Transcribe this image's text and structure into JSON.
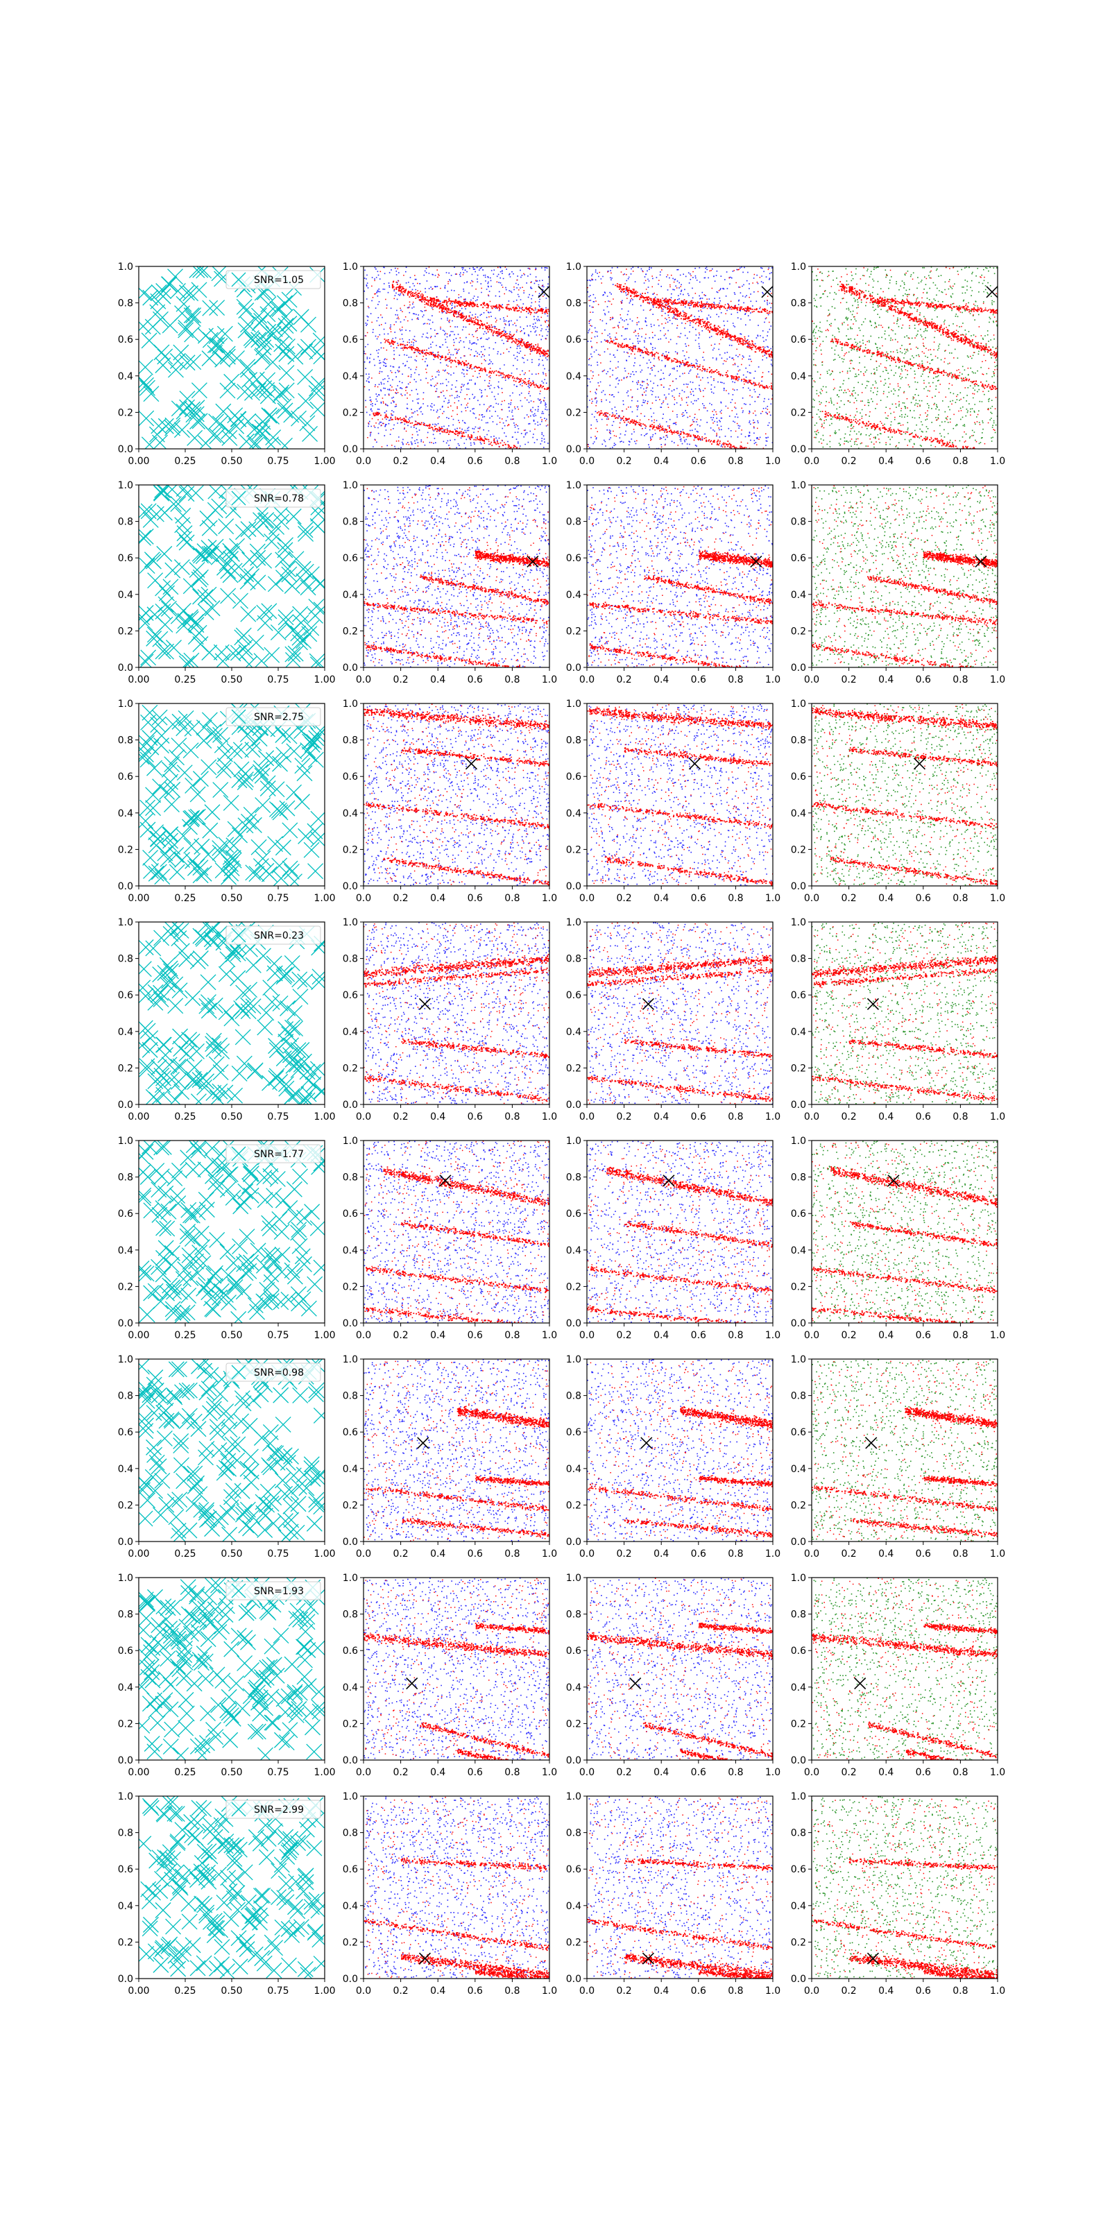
{
  "chart_data": {
    "type": "scatter",
    "layout": {
      "rows": 8,
      "columns": 4
    },
    "x_ticks": [
      "0.00",
      "0.25",
      "0.50",
      "0.75",
      "1.00"
    ],
    "x_ticks_short": [
      "0.0",
      "0.2",
      "0.4",
      "0.6",
      "0.8",
      "1.0"
    ],
    "y_ticks": [
      "0.0",
      "0.2",
      "0.4",
      "0.6",
      "0.8",
      "1.0"
    ],
    "xlim": [
      0,
      1
    ],
    "ylim": [
      0,
      1
    ],
    "colors": {
      "noise_marker": "#00bfbf",
      "signal": "#ff0000",
      "background": "#0000ff",
      "remainder": "#008000",
      "source_marker": "#000000"
    },
    "columns_style": [
      "cyan-x-markers",
      "red-blue-points",
      "red-blue-points",
      "red-green-points"
    ],
    "rows": [
      {
        "legend": "SNR=1.05",
        "source": [
          0.97,
          0.86
        ],
        "bands": [
          [
            0.15,
            0.9,
            -0.45
          ],
          [
            0.35,
            0.82,
            -0.1
          ],
          [
            0.1,
            0.6,
            -0.3
          ],
          [
            0.05,
            0.2,
            -0.25
          ]
        ]
      },
      {
        "legend": "SNR=0.78",
        "source": [
          0.91,
          0.58
        ],
        "bands": [
          [
            0.6,
            0.62,
            -0.12
          ],
          [
            0.0,
            0.35,
            -0.1
          ],
          [
            0.0,
            0.12,
            -0.15
          ],
          [
            0.3,
            0.5,
            -0.2
          ]
        ]
      },
      {
        "legend": "SNR=2.75",
        "source": [
          0.58,
          0.67
        ],
        "bands": [
          [
            0.0,
            0.96,
            -0.08
          ],
          [
            0.2,
            0.75,
            -0.1
          ],
          [
            0.0,
            0.45,
            -0.12
          ],
          [
            0.1,
            0.15,
            -0.15
          ]
        ]
      },
      {
        "legend": "SNR=0.23",
        "source": [
          0.33,
          0.55
        ],
        "bands": [
          [
            0.0,
            0.72,
            0.08
          ],
          [
            0.0,
            0.66,
            0.08
          ],
          [
            0.2,
            0.35,
            -0.1
          ],
          [
            0.0,
            0.15,
            -0.12
          ]
        ]
      },
      {
        "legend": "SNR=1.77",
        "source": [
          0.44,
          0.78
        ],
        "bands": [
          [
            0.1,
            0.84,
            -0.2
          ],
          [
            0.2,
            0.55,
            -0.15
          ],
          [
            0.0,
            0.3,
            -0.12
          ],
          [
            0.0,
            0.08,
            -0.1
          ]
        ]
      },
      {
        "legend": "SNR=0.98",
        "source": [
          0.32,
          0.54
        ],
        "bands": [
          [
            0.5,
            0.72,
            -0.15
          ],
          [
            0.0,
            0.3,
            -0.12
          ],
          [
            0.2,
            0.12,
            -0.1
          ],
          [
            0.6,
            0.35,
            -0.08
          ]
        ]
      },
      {
        "legend": "SNR=1.93",
        "source": [
          0.26,
          0.42
        ],
        "bands": [
          [
            0.0,
            0.68,
            -0.1
          ],
          [
            0.6,
            0.74,
            -0.08
          ],
          [
            0.3,
            0.2,
            -0.25
          ],
          [
            0.5,
            0.05,
            -0.2
          ]
        ]
      },
      {
        "legend": "SNR=2.99",
        "source": [
          0.33,
          0.11
        ],
        "bands": [
          [
            0.2,
            0.12,
            -0.12
          ],
          [
            0.6,
            0.04,
            -0.1
          ],
          [
            0.0,
            0.32,
            -0.15
          ],
          [
            0.2,
            0.65,
            -0.05
          ]
        ]
      }
    ]
  }
}
